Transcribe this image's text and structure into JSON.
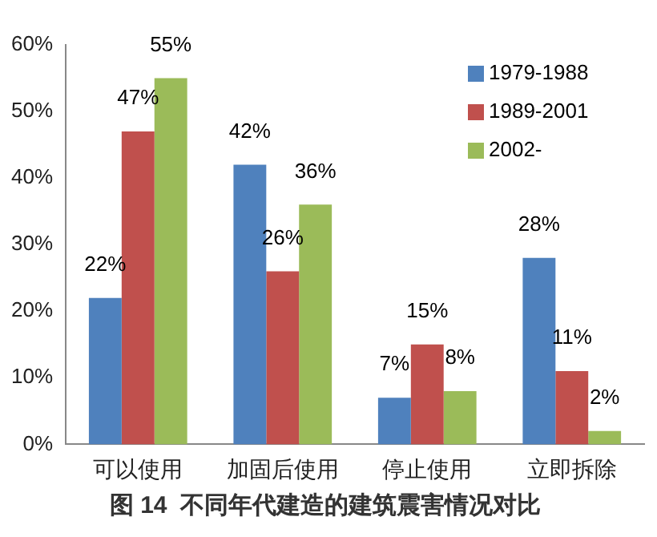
{
  "chart_data": {
    "type": "bar",
    "title": "图 14  不同年代建造的建筑震害情况对比",
    "categories": [
      "可以使用",
      "加固后使用",
      "停止使用",
      "立即拆除"
    ],
    "series": [
      {
        "name": "1979-1988",
        "color": "#4f81bd",
        "values": [
          22,
          42,
          7,
          28
        ],
        "value_labels": [
          "22%",
          "42%",
          "7%",
          "28%"
        ]
      },
      {
        "name": "1989-2001",
        "color": "#c0504d",
        "values": [
          47,
          26,
          15,
          11
        ],
        "value_labels": [
          "47%",
          "26%",
          "15%",
          "11%"
        ]
      },
      {
        "name": "2002-",
        "color": "#9bbb59",
        "values": [
          55,
          36,
          8,
          2
        ],
        "value_labels": [
          "55%",
          "36%",
          "8%",
          "2%"
        ]
      }
    ],
    "ylim": [
      0,
      60
    ],
    "yticks": [
      {
        "value": 0,
        "label": "0%"
      },
      {
        "value": 10,
        "label": "10%"
      },
      {
        "value": 20,
        "label": "20%"
      },
      {
        "value": 30,
        "label": "30%"
      },
      {
        "value": 40,
        "label": "40%"
      },
      {
        "value": 50,
        "label": "50%"
      },
      {
        "value": 60,
        "label": "60%"
      }
    ],
    "grid": false,
    "legend": "top right"
  }
}
